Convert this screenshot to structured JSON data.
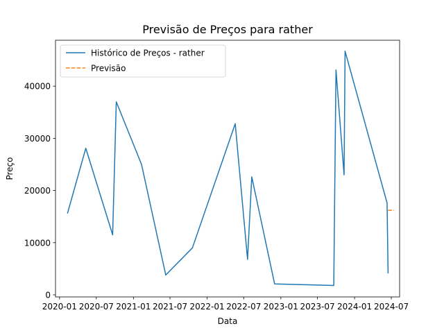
{
  "chart_data": {
    "type": "line",
    "title": "Previsão de Preços para rather",
    "xlabel": "Data",
    "ylabel": "Preço",
    "xlim": [
      "2019-12-12",
      "2024-08-11"
    ],
    "ylim": [
      -400,
      48800
    ],
    "x_ticks": [
      {
        "date": "2020-01-01",
        "label": "2020-01"
      },
      {
        "date": "2020-07-01",
        "label": "2020-07"
      },
      {
        "date": "2021-01-01",
        "label": "2021-01"
      },
      {
        "date": "2021-07-01",
        "label": "2021-07"
      },
      {
        "date": "2022-01-01",
        "label": "2022-01"
      },
      {
        "date": "2022-07-01",
        "label": "2022-07"
      },
      {
        "date": "2023-01-01",
        "label": "2023-01"
      },
      {
        "date": "2023-07-01",
        "label": "2023-07"
      },
      {
        "date": "2024-01-01",
        "label": "2024-01"
      },
      {
        "date": "2024-07-01",
        "label": "2024-07"
      }
    ],
    "y_ticks": [
      {
        "value": 0,
        "label": "0"
      },
      {
        "value": 10000,
        "label": "10000"
      },
      {
        "value": 20000,
        "label": "20000"
      },
      {
        "value": 30000,
        "label": "30000"
      },
      {
        "value": 40000,
        "label": "40000"
      }
    ],
    "grid": false,
    "legend_position": "top-left",
    "series": [
      {
        "name": "Histórico de Preços - rather",
        "color": "#1f77b4",
        "style": "solid",
        "points": [
          {
            "x": "2020-02-10",
            "y": 15700
          },
          {
            "x": "2020-05-10",
            "y": 28100
          },
          {
            "x": "2020-09-20",
            "y": 11500
          },
          {
            "x": "2020-10-08",
            "y": 37000
          },
          {
            "x": "2021-02-10",
            "y": 25000
          },
          {
            "x": "2021-06-10",
            "y": 3800
          },
          {
            "x": "2021-10-20",
            "y": 9000
          },
          {
            "x": "2022-05-20",
            "y": 32800
          },
          {
            "x": "2022-07-20",
            "y": 6800
          },
          {
            "x": "2022-08-10",
            "y": 22600
          },
          {
            "x": "2022-12-01",
            "y": 2100
          },
          {
            "x": "2023-09-20",
            "y": 1800
          },
          {
            "x": "2023-10-01",
            "y": 43100
          },
          {
            "x": "2023-11-10",
            "y": 23000
          },
          {
            "x": "2023-11-15",
            "y": 46700
          },
          {
            "x": "2024-06-10",
            "y": 17600
          },
          {
            "x": "2024-06-15",
            "y": 4200
          }
        ]
      },
      {
        "name": "Previsão",
        "color": "#ff7f0e",
        "style": "dashed",
        "points": [
          {
            "x": "2024-06-15",
            "y": 16200
          },
          {
            "x": "2024-07-15",
            "y": 16200
          }
        ]
      }
    ]
  }
}
